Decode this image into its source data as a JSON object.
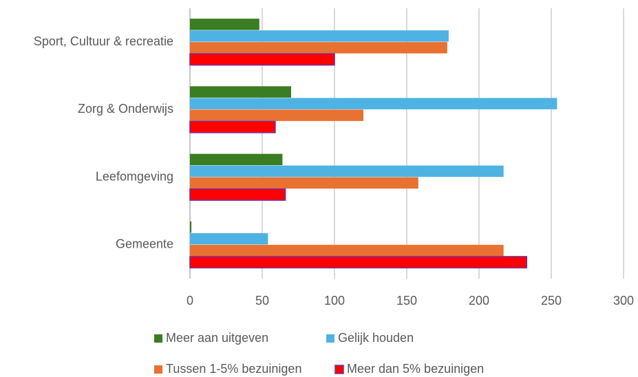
{
  "chart_data": {
    "type": "barh",
    "categories": [
      "Sport, Cultuur & recreatie",
      "Zorg & Onderwijs",
      "Leefomgeving",
      "Gemeente"
    ],
    "series": [
      {
        "name": "Meer aan uitgeven",
        "color": "#3a7d22",
        "values": [
          48,
          70,
          64,
          1
        ]
      },
      {
        "name": "Gelijk houden",
        "color": "#4eb3e3",
        "values": [
          179,
          254,
          217,
          54
        ]
      },
      {
        "name": "Tussen 1-5% bezuinigen",
        "color": "#e97132",
        "values": [
          178,
          120,
          158,
          217
        ]
      },
      {
        "name": "Meer dan 5% bezuinigen",
        "color": "#ff0000",
        "edge_color": "#7030a0",
        "values": [
          100,
          59,
          66,
          233
        ]
      }
    ],
    "xlim": [
      0,
      300
    ],
    "xticks": [
      0,
      50,
      100,
      150,
      200,
      250,
      300
    ],
    "grid": true,
    "legend": "bottom"
  }
}
